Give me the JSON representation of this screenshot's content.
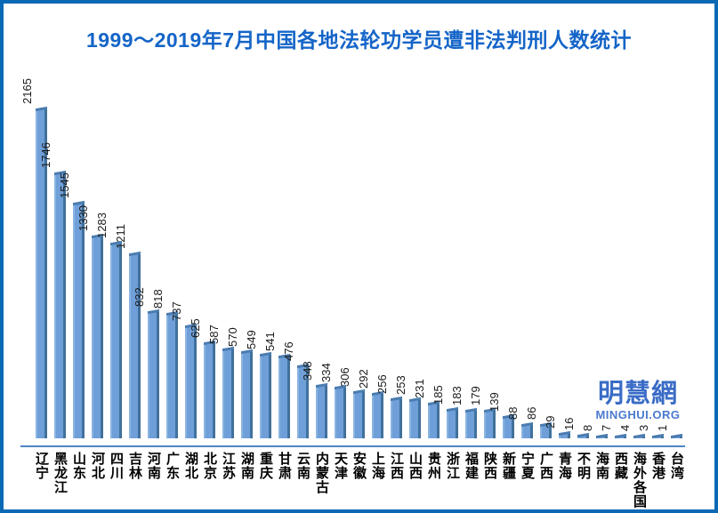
{
  "page": {
    "title": "1999～2019年7月中国各地法轮功学员遭非法判刑人数统计"
  },
  "watermark": {
    "name": "明慧網",
    "site": "MINGHUI.ORG"
  },
  "colors": {
    "frame_border": "#0a69b5",
    "title_text": "#1565c8",
    "bar_face": "#6f9fd8",
    "bar_highlight": "#8ab4e2",
    "bar_shade": "#41719c",
    "bar_cap": "#4a7cb0",
    "axis_line": "#4e86c6",
    "label_text": "#000000",
    "watermark_text": "#3a6cc6"
  },
  "chart_data": {
    "type": "bar",
    "title": "1999～2019年7月中国各地法轮功学员遭非法判刑人数统计",
    "xlabel": "",
    "ylabel": "",
    "ylim": [
      0,
      2165
    ],
    "grid": false,
    "legend": "none",
    "orientation": "vertical-bars",
    "value_label_style": "rotated-90-above-bar",
    "category_label_style": "vertical-upright-below-axis",
    "categories": [
      "辽宁",
      "黑龙江",
      "山东",
      "河北",
      "四川",
      "吉林",
      "河南",
      "广东",
      "湖北",
      "北京",
      "江苏",
      "湖南",
      "重庆",
      "甘肃",
      "云南",
      "内蒙古",
      "天津",
      "安徽",
      "上海",
      "江西",
      "山西",
      "贵州",
      "浙江",
      "福建",
      "陕西",
      "新疆",
      "宁夏",
      "广西",
      "青海",
      "不明",
      "海南",
      "西藏",
      "海外各国",
      "香港",
      "台湾"
    ],
    "values": [
      2165,
      1746,
      1545,
      1330,
      1283,
      1211,
      832,
      818,
      737,
      625,
      587,
      570,
      549,
      541,
      476,
      348,
      334,
      306,
      292,
      256,
      253,
      231,
      185,
      183,
      179,
      139,
      88,
      86,
      29,
      16,
      8,
      7,
      4,
      3,
      1
    ]
  }
}
